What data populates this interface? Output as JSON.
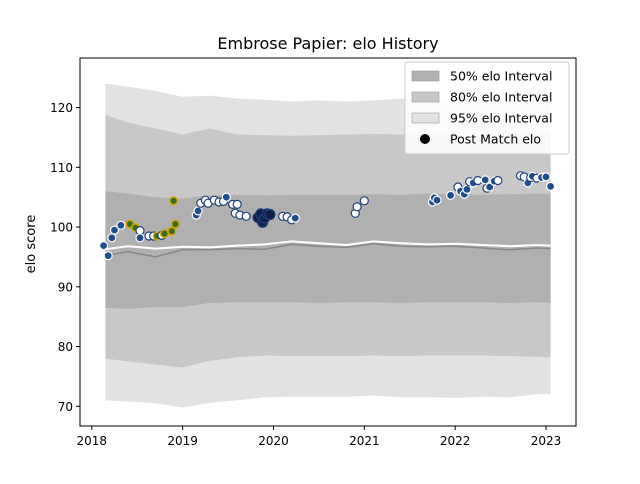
{
  "chart_data": {
    "type": "scatter",
    "title": "Embrose Papier: elo History",
    "xlabel": "",
    "ylabel": "elo score",
    "xlim": [
      2017.87,
      2023.33
    ],
    "ylim": [
      66.7,
      128.3
    ],
    "x_ticks": [
      2018,
      2019,
      2020,
      2021,
      2022,
      2023
    ],
    "x_tick_labels": [
      "2018",
      "2019",
      "2020",
      "2021",
      "2022",
      "2023"
    ],
    "y_ticks": [
      70,
      80,
      90,
      100,
      110,
      120
    ],
    "y_tick_labels": [
      "70",
      "80",
      "90",
      "100",
      "110",
      "120"
    ],
    "grid": false,
    "legend": {
      "placement": "top-right",
      "entries": [
        {
          "label": "50% elo Interval",
          "color": "#b0b0b0",
          "kind": "band"
        },
        {
          "label": "80% elo Interval",
          "color": "#c8c8c8",
          "kind": "band"
        },
        {
          "label": "95% elo Interval",
          "color": "#e2e2e2",
          "kind": "band"
        },
        {
          "label": "Post Match elo",
          "color": "#000000",
          "kind": "marker"
        }
      ]
    },
    "colors": {
      "band_95": "#e2e2e2",
      "band_80": "#c8c8c8",
      "band_50": "#b0b0b0",
      "median_line": "#ffffff",
      "mean_line": "#888888",
      "marker_blue": "#1f4e8c",
      "marker_dark": "#0d1f45",
      "marker_open": "#ffffff",
      "marker_olive": "#3b6e1e",
      "edge_gold": "#d4a800",
      "edge_navy": "#1f3f7a"
    },
    "bands": {
      "x": [
        2018.15,
        2018.4,
        2018.7,
        2019.0,
        2019.3,
        2019.6,
        2019.9,
        2020.2,
        2020.5,
        2020.8,
        2021.1,
        2021.4,
        2021.7,
        2022.0,
        2022.3,
        2022.6,
        2022.9,
        2023.05
      ],
      "p95_hi": [
        124.0,
        123.5,
        122.8,
        121.8,
        122.0,
        121.5,
        121.3,
        121.0,
        121.2,
        121.0,
        121.2,
        121.5,
        121.3,
        121.5,
        121.3,
        121.6,
        122.0,
        121.8
      ],
      "p95_lo": [
        71.0,
        70.8,
        70.5,
        69.8,
        70.6,
        71.0,
        71.5,
        71.6,
        71.6,
        71.6,
        71.8,
        71.5,
        71.5,
        71.4,
        71.6,
        71.5,
        72.0,
        72.0
      ],
      "p80_hi": [
        118.8,
        117.5,
        116.5,
        115.5,
        116.5,
        115.5,
        115.4,
        115.3,
        115.4,
        115.5,
        115.6,
        115.5,
        115.5,
        115.4,
        115.3,
        115.6,
        115.8,
        115.6
      ],
      "p80_lo": [
        78.0,
        77.5,
        77.0,
        76.5,
        77.6,
        78.2,
        78.5,
        78.4,
        78.4,
        78.4,
        78.5,
        78.4,
        78.5,
        78.5,
        78.5,
        78.4,
        78.3,
        78.2
      ],
      "p50_hi": [
        106.0,
        105.6,
        105.0,
        104.8,
        105.3,
        105.4,
        105.3,
        105.4,
        105.4,
        105.4,
        105.5,
        105.4,
        105.6,
        105.5,
        105.4,
        105.5,
        105.6,
        105.5
      ],
      "p50_lo": [
        86.5,
        86.3,
        86.6,
        86.6,
        87.3,
        87.4,
        87.4,
        87.4,
        87.3,
        87.4,
        87.4,
        87.3,
        87.4,
        87.4,
        87.4,
        87.3,
        87.4,
        87.3
      ],
      "median": [
        96.3,
        96.8,
        96.4,
        96.7,
        96.6,
        96.9,
        97.1,
        97.6,
        97.3,
        97.0,
        97.6,
        97.3,
        97.1,
        97.2,
        97.0,
        96.8,
        97.0,
        96.9
      ],
      "mean": [
        95.2,
        95.9,
        95.0,
        96.2,
        96.2,
        96.4,
        96.3,
        97.1,
        96.8,
        96.6,
        97.2,
        96.8,
        96.7,
        96.8,
        96.5,
        96.2,
        96.5,
        96.4
      ]
    },
    "series": [
      {
        "name": "Post Match elo",
        "points": [
          {
            "x": 2018.13,
            "y": 96.9,
            "style": "blue"
          },
          {
            "x": 2018.18,
            "y": 95.2,
            "style": "blue"
          },
          {
            "x": 2018.22,
            "y": 98.2,
            "style": "blue"
          },
          {
            "x": 2018.25,
            "y": 99.5,
            "style": "blue"
          },
          {
            "x": 2018.32,
            "y": 100.3,
            "style": "blue"
          },
          {
            "x": 2018.42,
            "y": 100.5,
            "style": "olive"
          },
          {
            "x": 2018.48,
            "y": 99.9,
            "style": "olive"
          },
          {
            "x": 2018.53,
            "y": 99.4,
            "style": "open"
          },
          {
            "x": 2018.53,
            "y": 98.2,
            "style": "blue"
          },
          {
            "x": 2018.63,
            "y": 98.5,
            "style": "open"
          },
          {
            "x": 2018.68,
            "y": 98.5,
            "style": "open"
          },
          {
            "x": 2018.72,
            "y": 98.5,
            "style": "olive"
          },
          {
            "x": 2018.77,
            "y": 98.6,
            "style": "open"
          },
          {
            "x": 2018.8,
            "y": 98.9,
            "style": "olive"
          },
          {
            "x": 2018.88,
            "y": 99.3,
            "style": "olive"
          },
          {
            "x": 2018.9,
            "y": 104.4,
            "style": "olive"
          },
          {
            "x": 2018.92,
            "y": 100.5,
            "style": "olive"
          },
          {
            "x": 2019.15,
            "y": 102.0,
            "style": "blue"
          },
          {
            "x": 2019.17,
            "y": 102.7,
            "style": "blue"
          },
          {
            "x": 2019.2,
            "y": 104.0,
            "style": "open"
          },
          {
            "x": 2019.25,
            "y": 104.5,
            "style": "open"
          },
          {
            "x": 2019.28,
            "y": 104.0,
            "style": "open"
          },
          {
            "x": 2019.35,
            "y": 104.5,
            "style": "open"
          },
          {
            "x": 2019.4,
            "y": 104.2,
            "style": "open"
          },
          {
            "x": 2019.45,
            "y": 104.3,
            "style": "open"
          },
          {
            "x": 2019.48,
            "y": 105.0,
            "style": "blue"
          },
          {
            "x": 2019.55,
            "y": 103.8,
            "style": "open"
          },
          {
            "x": 2019.6,
            "y": 103.8,
            "style": "open"
          },
          {
            "x": 2019.58,
            "y": 102.3,
            "style": "open"
          },
          {
            "x": 2019.63,
            "y": 102.0,
            "style": "open"
          },
          {
            "x": 2019.7,
            "y": 101.8,
            "style": "open"
          },
          {
            "x": 2019.83,
            "y": 101.6,
            "style": "dark"
          },
          {
            "x": 2019.86,
            "y": 102.2,
            "style": "dark"
          },
          {
            "x": 2019.88,
            "y": 100.8,
            "style": "dark"
          },
          {
            "x": 2019.9,
            "y": 101.5,
            "style": "dark"
          },
          {
            "x": 2019.93,
            "y": 102.2,
            "style": "dark"
          },
          {
            "x": 2019.96,
            "y": 102.1,
            "style": "dark"
          },
          {
            "x": 2020.1,
            "y": 101.8,
            "style": "open"
          },
          {
            "x": 2020.15,
            "y": 101.7,
            "style": "open"
          },
          {
            "x": 2020.2,
            "y": 101.2,
            "style": "open"
          },
          {
            "x": 2020.24,
            "y": 101.5,
            "style": "blue"
          },
          {
            "x": 2020.9,
            "y": 102.3,
            "style": "open"
          },
          {
            "x": 2020.92,
            "y": 103.4,
            "style": "open"
          },
          {
            "x": 2021.0,
            "y": 104.4,
            "style": "open"
          },
          {
            "x": 2021.75,
            "y": 104.2,
            "style": "blue"
          },
          {
            "x": 2021.77,
            "y": 104.9,
            "style": "blue"
          },
          {
            "x": 2021.8,
            "y": 104.5,
            "style": "blue"
          },
          {
            "x": 2021.95,
            "y": 105.3,
            "style": "blue"
          },
          {
            "x": 2022.03,
            "y": 106.7,
            "style": "open"
          },
          {
            "x": 2022.06,
            "y": 106.0,
            "style": "blue"
          },
          {
            "x": 2022.1,
            "y": 105.5,
            "style": "blue"
          },
          {
            "x": 2022.13,
            "y": 106.3,
            "style": "blue"
          },
          {
            "x": 2022.16,
            "y": 107.6,
            "style": "open"
          },
          {
            "x": 2022.2,
            "y": 107.4,
            "style": "blue"
          },
          {
            "x": 2022.25,
            "y": 107.8,
            "style": "open"
          },
          {
            "x": 2022.33,
            "y": 107.9,
            "style": "blue"
          },
          {
            "x": 2022.35,
            "y": 106.5,
            "style": "open"
          },
          {
            "x": 2022.38,
            "y": 106.7,
            "style": "blue"
          },
          {
            "x": 2022.43,
            "y": 107.7,
            "style": "blue"
          },
          {
            "x": 2022.47,
            "y": 107.8,
            "style": "open"
          },
          {
            "x": 2022.72,
            "y": 108.6,
            "style": "open"
          },
          {
            "x": 2022.76,
            "y": 108.4,
            "style": "open"
          },
          {
            "x": 2022.8,
            "y": 107.4,
            "style": "blue"
          },
          {
            "x": 2022.83,
            "y": 108.3,
            "style": "open"
          },
          {
            "x": 2022.85,
            "y": 108.5,
            "style": "blue"
          },
          {
            "x": 2022.9,
            "y": 108.2,
            "style": "open"
          },
          {
            "x": 2022.95,
            "y": 108.3,
            "style": "blue"
          },
          {
            "x": 2023.0,
            "y": 108.4,
            "style": "blue"
          },
          {
            "x": 2023.05,
            "y": 106.8,
            "style": "blue"
          }
        ]
      }
    ]
  }
}
